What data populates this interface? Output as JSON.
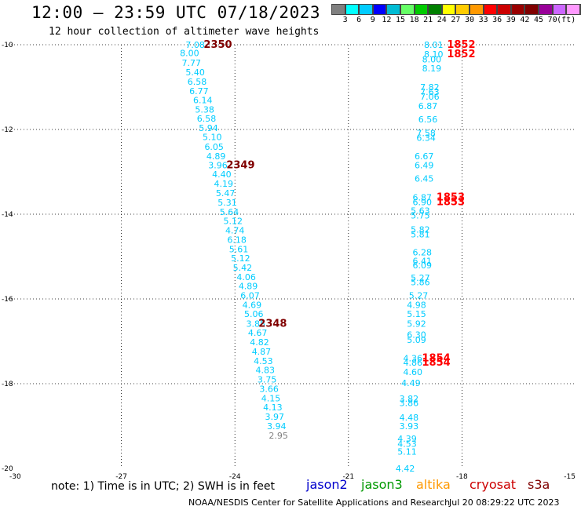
{
  "header": {
    "title": "12:00 — 23:59 UTC 07/18/2023",
    "subtitle": "12 hour collection of altimeter wave heights"
  },
  "color_scale": {
    "colors": [
      "#808080",
      "#00ffff",
      "#00ccff",
      "#0000ff",
      "#00bcd4",
      "#66ff66",
      "#00cc00",
      "#008000",
      "#ffff00",
      "#ffcc00",
      "#ff9900",
      "#ff0000",
      "#cc0000",
      "#990000",
      "#800000",
      "#990099",
      "#cc66ff",
      "#ff99ff",
      "#000000"
    ],
    "labels": [
      "3",
      "6",
      "9",
      "12",
      "15",
      "18",
      "21",
      "24",
      "27",
      "30",
      "33",
      "36",
      "39",
      "42",
      "45",
      "70",
      "(ft)"
    ]
  },
  "axes": {
    "x_ticks": [
      "-30",
      "-27",
      "-24",
      "-21",
      "-18",
      "-15"
    ],
    "y_ticks": [
      "-10",
      "-12",
      "-14",
      "-16",
      "-18",
      "-20"
    ],
    "xlim": [
      -30,
      -15
    ],
    "ylim": [
      -20,
      -10
    ]
  },
  "chart_data": {
    "type": "scatter",
    "title": "12:00 — 23:59 UTC 07/18/2023",
    "subtitle": "12 hour collection of altimeter wave heights",
    "xlim": [
      -30,
      -15
    ],
    "ylim": [
      -20,
      -10
    ],
    "grid": true,
    "points": [
      {
        "x": -25.05,
        "y": -10.0,
        "v": "7.08",
        "c": "#00ccff"
      },
      {
        "x": -25.2,
        "y": -10.19,
        "v": "8.00",
        "c": "#00ccff"
      },
      {
        "x": -25.15,
        "y": -10.43,
        "v": "7.77",
        "c": "#00ccff"
      },
      {
        "x": -25.05,
        "y": -10.65,
        "v": "5.40",
        "c": "#00ccff"
      },
      {
        "x": -25.0,
        "y": -10.87,
        "v": "6.58",
        "c": "#00ccff"
      },
      {
        "x": -24.95,
        "y": -11.09,
        "v": "6.77",
        "c": "#00ccff"
      },
      {
        "x": -24.85,
        "y": -11.31,
        "v": "6.14",
        "c": "#00ccff"
      },
      {
        "x": -24.8,
        "y": -11.53,
        "v": "5.38",
        "c": "#00ccff"
      },
      {
        "x": -24.75,
        "y": -11.74,
        "v": "6.58",
        "c": "#00ccff"
      },
      {
        "x": -24.7,
        "y": -11.96,
        "v": "5.94",
        "c": "#00ccff"
      },
      {
        "x": -24.6,
        "y": -12.18,
        "v": "5.10",
        "c": "#00ccff"
      },
      {
        "x": -24.55,
        "y": -12.41,
        "v": "6.05",
        "c": "#00ccff"
      },
      {
        "x": -24.5,
        "y": -12.63,
        "v": "4.89",
        "c": "#00ccff"
      },
      {
        "x": -24.45,
        "y": -12.84,
        "v": "3.96",
        "c": "#00ccff"
      },
      {
        "x": -24.35,
        "y": -13.06,
        "v": "4.40",
        "c": "#00ccff"
      },
      {
        "x": -24.3,
        "y": -13.28,
        "v": "4.19",
        "c": "#00ccff"
      },
      {
        "x": -24.25,
        "y": -13.5,
        "v": "5.47",
        "c": "#00ccff"
      },
      {
        "x": -24.2,
        "y": -13.72,
        "v": "5.31",
        "c": "#00ccff"
      },
      {
        "x": -24.15,
        "y": -13.94,
        "v": "5.64",
        "c": "#00ccff"
      },
      {
        "x": -24.05,
        "y": -14.16,
        "v": "5.12",
        "c": "#00ccff"
      },
      {
        "x": -24.0,
        "y": -14.38,
        "v": "4.74",
        "c": "#00ccff"
      },
      {
        "x": -23.95,
        "y": -14.6,
        "v": "6.18",
        "c": "#00ccff"
      },
      {
        "x": -23.9,
        "y": -14.82,
        "v": "5.61",
        "c": "#00ccff"
      },
      {
        "x": -23.85,
        "y": -15.04,
        "v": "5.12",
        "c": "#00ccff"
      },
      {
        "x": -23.8,
        "y": -15.26,
        "v": "5.42",
        "c": "#00ccff"
      },
      {
        "x": -23.7,
        "y": -15.48,
        "v": "4.06",
        "c": "#00ccff"
      },
      {
        "x": -23.65,
        "y": -15.69,
        "v": "4.89",
        "c": "#00ccff"
      },
      {
        "x": -23.6,
        "y": -15.92,
        "v": "6.07",
        "c": "#00ccff"
      },
      {
        "x": -23.55,
        "y": -16.14,
        "v": "4.69",
        "c": "#00ccff"
      },
      {
        "x": -23.5,
        "y": -16.35,
        "v": "5.06",
        "c": "#00ccff"
      },
      {
        "x": -23.45,
        "y": -16.58,
        "v": "3.85",
        "c": "#00ccff"
      },
      {
        "x": -23.4,
        "y": -16.8,
        "v": "4.67",
        "c": "#00ccff"
      },
      {
        "x": -23.35,
        "y": -17.02,
        "v": "4.82",
        "c": "#00ccff"
      },
      {
        "x": -23.3,
        "y": -17.24,
        "v": "4.87",
        "c": "#00ccff"
      },
      {
        "x": -23.25,
        "y": -17.46,
        "v": "4.53",
        "c": "#00ccff"
      },
      {
        "x": -23.2,
        "y": -17.68,
        "v": "4.83",
        "c": "#00ccff"
      },
      {
        "x": -23.15,
        "y": -17.9,
        "v": "3.75",
        "c": "#00ccff"
      },
      {
        "x": -23.1,
        "y": -18.12,
        "v": "3.66",
        "c": "#00ccff"
      },
      {
        "x": -23.05,
        "y": -18.34,
        "v": "4.15",
        "c": "#00ccff"
      },
      {
        "x": -23.0,
        "y": -18.56,
        "v": "4.13",
        "c": "#00ccff"
      },
      {
        "x": -22.95,
        "y": -18.78,
        "v": "3.97",
        "c": "#00ccff"
      },
      {
        "x": -22.9,
        "y": -19.0,
        "v": "3.94",
        "c": "#00ccff"
      },
      {
        "x": -22.85,
        "y": -19.22,
        "v": "2.95",
        "c": "#808080"
      },
      {
        "x": -18.75,
        "y": -10.0,
        "v": "8.01",
        "c": "#00ccff"
      },
      {
        "x": -18.75,
        "y": -10.22,
        "v": "8.10",
        "c": "#00ccff"
      },
      {
        "x": -18.8,
        "y": -10.34,
        "v": "8.00",
        "c": "#00ccff"
      },
      {
        "x": -18.8,
        "y": -10.56,
        "v": "8.19",
        "c": "#00ccff"
      },
      {
        "x": -18.85,
        "y": -11.0,
        "v": "7.82",
        "c": "#00ccff"
      },
      {
        "x": -18.85,
        "y": -11.11,
        "v": "7.63",
        "c": "#00ccff"
      },
      {
        "x": -18.85,
        "y": -11.22,
        "v": "7.06",
        "c": "#00ccff"
      },
      {
        "x": -18.9,
        "y": -11.44,
        "v": "6.87",
        "c": "#00ccff"
      },
      {
        "x": -18.9,
        "y": -11.76,
        "v": "6.56",
        "c": "#00ccff"
      },
      {
        "x": -18.95,
        "y": -12.08,
        "v": "7.58",
        "c": "#00ccff"
      },
      {
        "x": -18.95,
        "y": -12.19,
        "v": "6.34",
        "c": "#00ccff"
      },
      {
        "x": -19.0,
        "y": -12.63,
        "v": "6.67",
        "c": "#00ccff"
      },
      {
        "x": -19.0,
        "y": -12.84,
        "v": "6.49",
        "c": "#00ccff"
      },
      {
        "x": -19.0,
        "y": -13.16,
        "v": "6.45",
        "c": "#00ccff"
      },
      {
        "x": -19.05,
        "y": -13.6,
        "v": "6.87",
        "c": "#00ccff"
      },
      {
        "x": -19.05,
        "y": -13.71,
        "v": "6.90",
        "c": "#00ccff"
      },
      {
        "x": -19.1,
        "y": -13.92,
        "v": "5.63",
        "c": "#00ccff"
      },
      {
        "x": -19.1,
        "y": -14.03,
        "v": "5.75",
        "c": "#00ccff"
      },
      {
        "x": -19.1,
        "y": -14.36,
        "v": "5.82",
        "c": "#00ccff"
      },
      {
        "x": -19.1,
        "y": -14.47,
        "v": "5.81",
        "c": "#00ccff"
      },
      {
        "x": -19.05,
        "y": -14.9,
        "v": "6.28",
        "c": "#00ccff"
      },
      {
        "x": -19.05,
        "y": -15.1,
        "v": "6.41",
        "c": "#00ccff"
      },
      {
        "x": -19.05,
        "y": -15.2,
        "v": "6.09",
        "c": "#00ccff"
      },
      {
        "x": -19.1,
        "y": -15.5,
        "v": "5.27",
        "c": "#00ccff"
      },
      {
        "x": -19.1,
        "y": -15.6,
        "v": "5.86",
        "c": "#00ccff"
      },
      {
        "x": -19.15,
        "y": -15.92,
        "v": "5.27",
        "c": "#00ccff"
      },
      {
        "x": -19.2,
        "y": -16.14,
        "v": "4.98",
        "c": "#00ccff"
      },
      {
        "x": -19.2,
        "y": -16.35,
        "v": "5.15",
        "c": "#00ccff"
      },
      {
        "x": -19.2,
        "y": -16.58,
        "v": "5.92",
        "c": "#00ccff"
      },
      {
        "x": -19.2,
        "y": -16.84,
        "v": "6.30",
        "c": "#00ccff"
      },
      {
        "x": -19.2,
        "y": -16.96,
        "v": "5.09",
        "c": "#00ccff"
      },
      {
        "x": -19.3,
        "y": -17.4,
        "v": "4.36",
        "c": "#00ccff"
      },
      {
        "x": -19.3,
        "y": -17.5,
        "v": "4.86",
        "c": "#00ccff"
      },
      {
        "x": -19.3,
        "y": -17.72,
        "v": "4.60",
        "c": "#00ccff"
      },
      {
        "x": -19.35,
        "y": -17.98,
        "v": "4.49",
        "c": "#00ccff"
      },
      {
        "x": -19.4,
        "y": -18.35,
        "v": "3.82",
        "c": "#00ccff"
      },
      {
        "x": -19.4,
        "y": -18.45,
        "v": "3.86",
        "c": "#00ccff"
      },
      {
        "x": -19.4,
        "y": -18.8,
        "v": "4.48",
        "c": "#00ccff"
      },
      {
        "x": -19.4,
        "y": -19.0,
        "v": "3.93",
        "c": "#00ccff"
      },
      {
        "x": -19.45,
        "y": -19.3,
        "v": "4.39",
        "c": "#00ccff"
      },
      {
        "x": -19.45,
        "y": -19.42,
        "v": "4.53",
        "c": "#00ccff"
      },
      {
        "x": -19.45,
        "y": -19.6,
        "v": "5.11",
        "c": "#00ccff"
      },
      {
        "x": -19.5,
        "y": -20.0,
        "v": "4.42",
        "c": "#00ccff"
      }
    ],
    "time_labels": [
      {
        "x": -24.45,
        "y": -10.0,
        "v": "2350",
        "c": "#800000"
      },
      {
        "x": -23.85,
        "y": -12.84,
        "v": "2349",
        "c": "#800000"
      },
      {
        "x": -23.0,
        "y": -16.58,
        "v": "2348",
        "c": "#800000"
      },
      {
        "x": -18.02,
        "y": -10.0,
        "v": "1852",
        "c": "#ff0000"
      },
      {
        "x": -18.02,
        "y": -10.22,
        "v": "1852",
        "c": "#ff0000"
      },
      {
        "x": -18.3,
        "y": -13.6,
        "v": "1853",
        "c": "#ff0000"
      },
      {
        "x": -18.3,
        "y": -13.71,
        "v": "1853",
        "c": "#ff0000"
      },
      {
        "x": -18.68,
        "y": -17.4,
        "v": "1854",
        "c": "#ff0000"
      },
      {
        "x": -18.68,
        "y": -17.5,
        "v": "1854",
        "c": "#ff0000"
      }
    ]
  },
  "footer": {
    "note": "note:  1) Time is in UTC;  2) SWH is in feet",
    "legend": [
      {
        "label": "jason2",
        "color": "#0000cc"
      },
      {
        "label": "jason3",
        "color": "#009900"
      },
      {
        "label": "altika",
        "color": "#ff9900"
      },
      {
        "label": "cryosat",
        "color": "#cc0000"
      },
      {
        "label": "s3a",
        "color": "#800000"
      }
    ],
    "credit": "NOAA/NESDIS Center for Satellite Applications and Research",
    "timestamp": "Jul 20 08:29:22 UTC 2023"
  }
}
